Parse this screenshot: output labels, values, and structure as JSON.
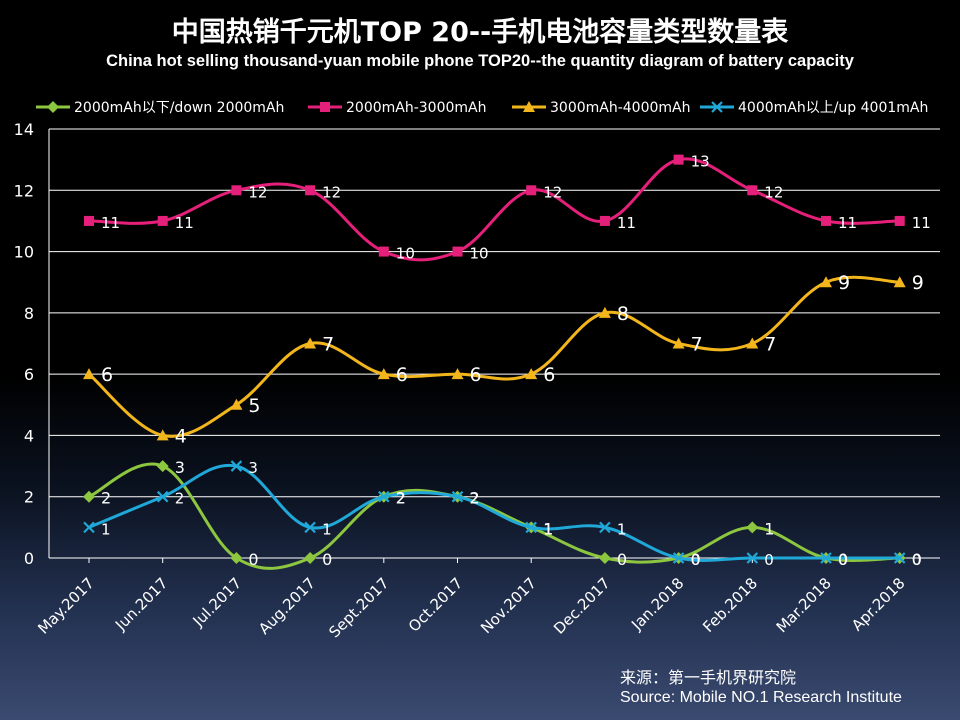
{
  "chart_data": {
    "type": "line",
    "title": "中国热销千元机TOP 20--手机电池容量类型数量表",
    "subtitle": "China hot selling thousand-yuan mobile phone TOP20--the quantity diagram of battery capacity",
    "categories": [
      "May.2017",
      "Jun.2017",
      "Jul.2017",
      "Aug.2017",
      "Sept.2017",
      "Oct.2017",
      "Nov.2017",
      "Dec.2017",
      "Jan.2018",
      "Feb.2018",
      "Mar.2018",
      "Apr.2018"
    ],
    "ylim": [
      0,
      14
    ],
    "yticks": [
      0,
      2,
      4,
      6,
      8,
      10,
      12,
      14
    ],
    "grid": true,
    "legend_position": "top",
    "series": [
      {
        "name": "2000mAh以下/down 2000mAh",
        "color": "#8dc63f",
        "marker": "diamond",
        "values": [
          2,
          3,
          0,
          0,
          2,
          2,
          1,
          0,
          0,
          1,
          0,
          0
        ]
      },
      {
        "name": "2000mAh-3000mAh",
        "color": "#e5207a",
        "marker": "square",
        "values": [
          11,
          11,
          12,
          12,
          10,
          10,
          12,
          11,
          13,
          12,
          11,
          11
        ]
      },
      {
        "name": "3000mAh-4000mAh",
        "color": "#f2b51c",
        "marker": "triangle",
        "values": [
          6,
          4,
          5,
          7,
          6,
          6,
          6,
          8,
          7,
          7,
          9,
          9
        ]
      },
      {
        "name": "4000mAh以上/up 4001mAh",
        "color": "#1fa8d8",
        "marker": "x",
        "values": [
          1,
          2,
          3,
          1,
          2,
          2,
          1,
          1,
          0,
          0,
          0,
          0
        ]
      }
    ],
    "source_cn": "来源：第一手机界研究院",
    "source_en": "Source: Mobile NO.1 Research Institute"
  }
}
